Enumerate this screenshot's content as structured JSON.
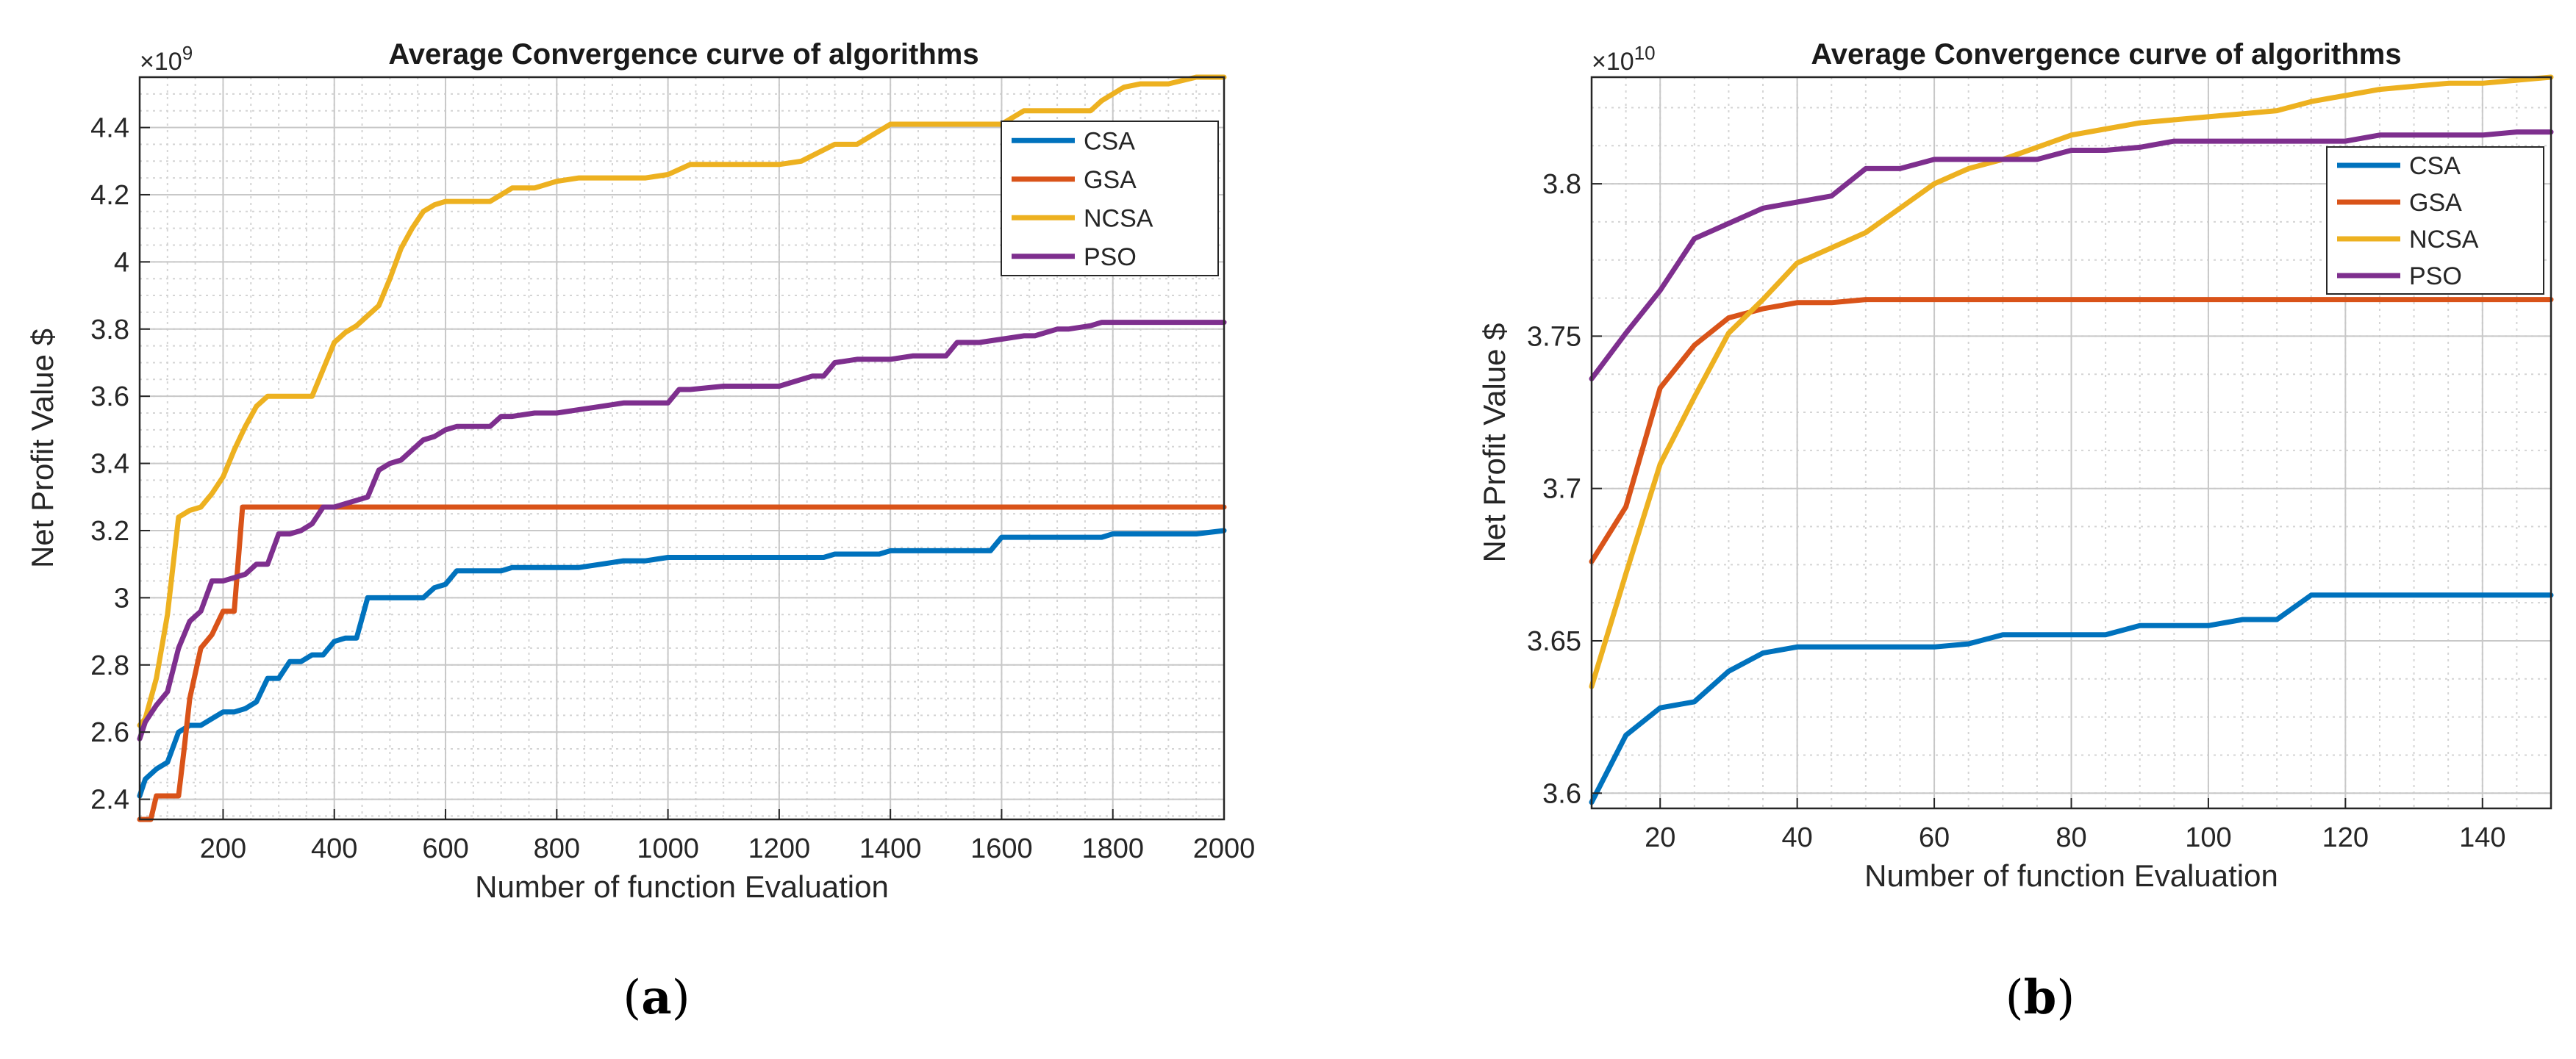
{
  "chart_data": [
    {
      "type": "line",
      "caption": "a",
      "title": "Average Convergence curve of algorithms",
      "xlabel": "Number of function Evaluation",
      "ylabel": "Net Profit Value $",
      "exponent_label": "×10",
      "exponent_power": "9",
      "xlim": [
        50,
        2000
      ],
      "ylim": [
        2.34,
        4.55
      ],
      "xticks": [
        "200",
        "400",
        "600",
        "800",
        "1000",
        "1200",
        "1400",
        "1600",
        "1800",
        "2000"
      ],
      "yticks": [
        "2.4",
        "2.6",
        "2.8",
        "3",
        "3.2",
        "3.4",
        "3.6",
        "3.8",
        "4",
        "4.2",
        "4.4"
      ],
      "grid": true,
      "legend_position": "top-right",
      "series": [
        {
          "name": "CSA",
          "color": "#0072BD",
          "x": [
            50,
            60,
            80,
            100,
            120,
            140,
            160,
            180,
            200,
            220,
            240,
            260,
            280,
            300,
            320,
            340,
            360,
            380,
            400,
            420,
            440,
            460,
            480,
            500,
            520,
            540,
            560,
            580,
            600,
            620,
            640,
            660,
            680,
            700,
            720,
            760,
            800,
            840,
            880,
            920,
            960,
            1000,
            1100,
            1200,
            1280,
            1300,
            1340,
            1380,
            1400,
            1500,
            1580,
            1600,
            1700,
            1780,
            1800,
            1850,
            1900,
            1950,
            2000
          ],
          "y": [
            2.41,
            2.46,
            2.49,
            2.51,
            2.6,
            2.62,
            2.62,
            2.64,
            2.66,
            2.66,
            2.67,
            2.69,
            2.76,
            2.76,
            2.81,
            2.81,
            2.83,
            2.83,
            2.87,
            2.88,
            2.88,
            3.0,
            3.0,
            3.0,
            3.0,
            3.0,
            3.0,
            3.03,
            3.04,
            3.08,
            3.08,
            3.08,
            3.08,
            3.08,
            3.09,
            3.09,
            3.09,
            3.09,
            3.1,
            3.11,
            3.11,
            3.12,
            3.12,
            3.12,
            3.12,
            3.13,
            3.13,
            3.13,
            3.14,
            3.14,
            3.14,
            3.18,
            3.18,
            3.18,
            3.19,
            3.19,
            3.19,
            3.19,
            3.2
          ]
        },
        {
          "name": "GSA",
          "color": "#D95319",
          "x": [
            50,
            70,
            80,
            100,
            120,
            130,
            140,
            160,
            180,
            200,
            220,
            235,
            240,
            300,
            400,
            500,
            1000,
            1500,
            2000
          ],
          "y": [
            2.34,
            2.34,
            2.41,
            2.41,
            2.41,
            2.55,
            2.7,
            2.85,
            2.89,
            2.96,
            2.96,
            3.27,
            3.27,
            3.27,
            3.27,
            3.27,
            3.27,
            3.27,
            3.27
          ]
        },
        {
          "name": "NCSA",
          "color": "#EDB120",
          "x": [
            50,
            60,
            80,
            100,
            120,
            140,
            160,
            180,
            200,
            220,
            240,
            260,
            280,
            300,
            320,
            340,
            360,
            380,
            400,
            420,
            440,
            460,
            480,
            500,
            520,
            540,
            560,
            580,
            600,
            640,
            680,
            700,
            720,
            760,
            800,
            840,
            880,
            920,
            960,
            1000,
            1040,
            1100,
            1200,
            1240,
            1300,
            1340,
            1400,
            1500,
            1580,
            1600,
            1640,
            1700,
            1760,
            1780,
            1800,
            1820,
            1850,
            1900,
            1950,
            2000
          ],
          "y": [
            2.62,
            2.64,
            2.76,
            2.95,
            3.24,
            3.26,
            3.27,
            3.31,
            3.36,
            3.44,
            3.51,
            3.57,
            3.6,
            3.6,
            3.6,
            3.6,
            3.6,
            3.68,
            3.76,
            3.79,
            3.81,
            3.84,
            3.87,
            3.95,
            4.04,
            4.1,
            4.15,
            4.17,
            4.18,
            4.18,
            4.18,
            4.2,
            4.22,
            4.22,
            4.24,
            4.25,
            4.25,
            4.25,
            4.25,
            4.26,
            4.29,
            4.29,
            4.29,
            4.3,
            4.35,
            4.35,
            4.41,
            4.41,
            4.41,
            4.41,
            4.45,
            4.45,
            4.45,
            4.48,
            4.5,
            4.52,
            4.53,
            4.53,
            4.55,
            4.55
          ]
        },
        {
          "name": "PSO",
          "color": "#7E2F8E",
          "x": [
            50,
            60,
            80,
            100,
            120,
            140,
            160,
            180,
            200,
            220,
            240,
            260,
            280,
            300,
            320,
            340,
            360,
            380,
            400,
            420,
            440,
            460,
            480,
            500,
            520,
            540,
            560,
            580,
            600,
            620,
            640,
            680,
            700,
            720,
            760,
            800,
            840,
            880,
            920,
            960,
            1000,
            1020,
            1040,
            1100,
            1140,
            1200,
            1220,
            1260,
            1280,
            1300,
            1340,
            1400,
            1440,
            1480,
            1500,
            1520,
            1560,
            1600,
            1640,
            1660,
            1700,
            1720,
            1760,
            1780,
            1800,
            1900,
            2000
          ],
          "y": [
            2.58,
            2.63,
            2.68,
            2.72,
            2.85,
            2.93,
            2.96,
            3.05,
            3.05,
            3.06,
            3.07,
            3.1,
            3.1,
            3.19,
            3.19,
            3.2,
            3.22,
            3.27,
            3.27,
            3.28,
            3.29,
            3.3,
            3.38,
            3.4,
            3.41,
            3.44,
            3.47,
            3.48,
            3.5,
            3.51,
            3.51,
            3.51,
            3.54,
            3.54,
            3.55,
            3.55,
            3.56,
            3.57,
            3.58,
            3.58,
            3.58,
            3.62,
            3.62,
            3.63,
            3.63,
            3.63,
            3.64,
            3.66,
            3.66,
            3.7,
            3.71,
            3.71,
            3.72,
            3.72,
            3.72,
            3.76,
            3.76,
            3.77,
            3.78,
            3.78,
            3.8,
            3.8,
            3.81,
            3.82,
            3.82,
            3.82,
            3.82
          ]
        }
      ]
    },
    {
      "type": "line",
      "caption": "b",
      "title": "Average Convergence curve of algorithms",
      "xlabel": "Number of function Evaluation",
      "ylabel": "Net Profit Value $",
      "exponent_label": "×10",
      "exponent_power": "10",
      "xlim": [
        10,
        150
      ],
      "ylim": [
        3.595,
        3.835
      ],
      "xticks": [
        "20",
        "40",
        "60",
        "80",
        "100",
        "120",
        "140"
      ],
      "yticks": [
        "3.6",
        "3.65",
        "3.7",
        "3.75",
        "3.8"
      ],
      "grid": true,
      "legend_position": "top-right",
      "series": [
        {
          "name": "CSA",
          "color": "#0072BD",
          "x": [
            10,
            15,
            20,
            25,
            30,
            35,
            40,
            45,
            50,
            55,
            60,
            65,
            70,
            75,
            80,
            85,
            90,
            95,
            100,
            105,
            110,
            115,
            120,
            125,
            130,
            135,
            140,
            145,
            150
          ],
          "y": [
            3.597,
            3.619,
            3.628,
            3.63,
            3.64,
            3.646,
            3.648,
            3.648,
            3.648,
            3.648,
            3.648,
            3.649,
            3.652,
            3.652,
            3.652,
            3.652,
            3.655,
            3.655,
            3.655,
            3.657,
            3.657,
            3.665,
            3.665,
            3.665,
            3.665,
            3.665,
            3.665,
            3.665,
            3.665
          ]
        },
        {
          "name": "GSA",
          "color": "#D95319",
          "x": [
            10,
            15,
            20,
            25,
            30,
            35,
            40,
            45,
            50,
            60,
            70,
            80,
            90,
            100,
            110,
            120,
            130,
            140,
            150
          ],
          "y": [
            3.676,
            3.694,
            3.733,
            3.747,
            3.756,
            3.759,
            3.761,
            3.761,
            3.762,
            3.762,
            3.762,
            3.762,
            3.762,
            3.762,
            3.762,
            3.762,
            3.762,
            3.762,
            3.762
          ]
        },
        {
          "name": "NCSA",
          "color": "#EDB120",
          "x": [
            10,
            15,
            20,
            25,
            30,
            35,
            40,
            45,
            50,
            55,
            60,
            65,
            70,
            75,
            80,
            85,
            90,
            95,
            100,
            105,
            110,
            115,
            120,
            125,
            130,
            135,
            140,
            145,
            150
          ],
          "y": [
            3.635,
            3.672,
            3.708,
            3.73,
            3.751,
            3.762,
            3.774,
            3.779,
            3.784,
            3.792,
            3.8,
            3.805,
            3.808,
            3.812,
            3.816,
            3.818,
            3.82,
            3.821,
            3.822,
            3.823,
            3.824,
            3.827,
            3.829,
            3.831,
            3.832,
            3.833,
            3.833,
            3.834,
            3.835
          ]
        },
        {
          "name": "PSO",
          "color": "#7E2F8E",
          "x": [
            10,
            15,
            20,
            25,
            30,
            35,
            40,
            45,
            50,
            55,
            60,
            65,
            70,
            75,
            80,
            85,
            90,
            95,
            100,
            105,
            110,
            115,
            120,
            125,
            130,
            135,
            140,
            145,
            150
          ],
          "y": [
            3.736,
            3.751,
            3.765,
            3.782,
            3.787,
            3.792,
            3.794,
            3.796,
            3.805,
            3.805,
            3.808,
            3.808,
            3.808,
            3.808,
            3.811,
            3.811,
            3.812,
            3.814,
            3.814,
            3.814,
            3.814,
            3.814,
            3.814,
            3.816,
            3.816,
            3.816,
            3.816,
            3.817,
            3.817
          ]
        }
      ]
    }
  ]
}
